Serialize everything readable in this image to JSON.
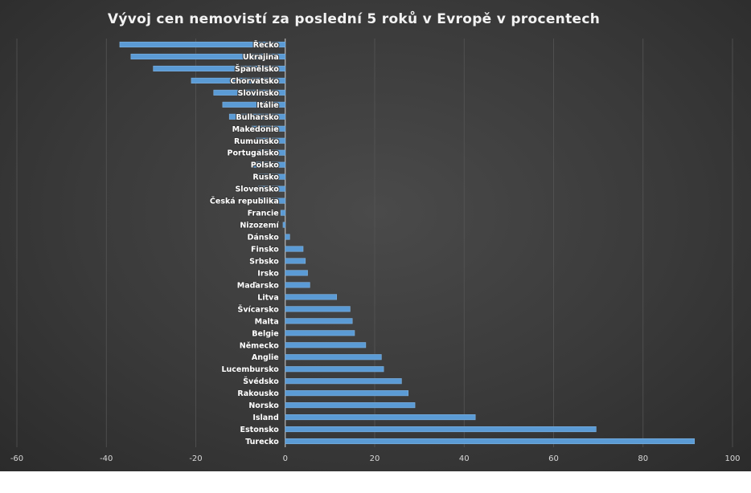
{
  "chart_data": {
    "type": "bar",
    "orientation": "horizontal",
    "title": "Vývoj cen nemovistí za poslední 5 roků v Evropě v procentech",
    "categories": [
      "Řecko",
      "Ukrajina",
      "Španělsko",
      "Chorvatsko",
      "Slovinsko",
      "Itálie",
      "Bulharsko",
      "Makedonie",
      "Rumunsko",
      "Portugalsko",
      "Polsko",
      "Rusko",
      "Slovensko",
      "Česká republika",
      "Francie",
      "Nizozemí",
      "Dánsko",
      "Finsko",
      "Srbsko",
      "Irsko",
      "Maďarsko",
      "Litva",
      "Švícarsko",
      "Malta",
      "Belgie",
      "Německo",
      "Anglie",
      "Lucembursko",
      "Švédsko",
      "Rakousko",
      "Norsko",
      "Island",
      "Estonsko",
      "Turecko"
    ],
    "values": [
      -37,
      -34.5,
      -29.5,
      -21,
      -16,
      -14,
      -12.5,
      -7.5,
      -6.5,
      -6,
      -7.5,
      -6,
      -6,
      -5.5,
      -1,
      -0.5,
      1,
      4,
      4.5,
      5,
      5.5,
      11.5,
      14.5,
      15,
      15.5,
      18,
      21.5,
      22,
      26,
      27.5,
      29,
      42.5,
      69.5,
      91.5
    ],
    "xlim": [
      -60,
      100
    ],
    "xticks": [
      "-60",
      "-40",
      "-20",
      "0",
      "20",
      "40",
      "60",
      "80",
      "100"
    ],
    "grid": true,
    "bar_color": "#5b9bd5"
  }
}
